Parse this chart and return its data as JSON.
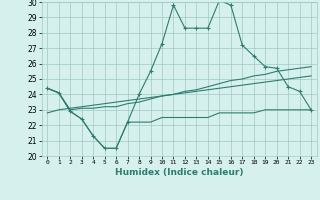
{
  "xlabel": "Humidex (Indice chaleur)",
  "x": [
    0,
    1,
    2,
    3,
    4,
    5,
    6,
    7,
    8,
    9,
    10,
    11,
    12,
    13,
    14,
    15,
    16,
    17,
    18,
    19,
    20,
    21,
    22,
    23
  ],
  "line_max": [
    24.4,
    24.1,
    22.9,
    22.4,
    21.3,
    20.5,
    20.5,
    22.2,
    24.0,
    25.5,
    27.3,
    29.8,
    28.3,
    28.3,
    28.3,
    30.1,
    29.8,
    27.2,
    26.5,
    25.8,
    25.7,
    24.5,
    24.2,
    23.0
  ],
  "line_min": [
    24.4,
    24.1,
    22.9,
    22.4,
    21.3,
    20.5,
    20.5,
    22.2,
    22.2,
    22.2,
    22.5,
    22.5,
    22.5,
    22.5,
    22.5,
    22.8,
    22.8,
    22.8,
    22.8,
    23.0,
    23.0,
    23.0,
    23.0,
    23.0
  ],
  "line_mean": [
    24.4,
    24.1,
    23.0,
    23.1,
    23.1,
    23.2,
    23.2,
    23.4,
    23.5,
    23.7,
    23.9,
    24.0,
    24.2,
    24.3,
    24.5,
    24.7,
    24.9,
    25.0,
    25.2,
    25.3,
    25.5,
    25.6,
    25.7,
    25.8
  ],
  "line_reg": [
    22.8,
    23.0,
    23.1,
    23.2,
    23.3,
    23.4,
    23.5,
    23.6,
    23.7,
    23.8,
    23.9,
    24.0,
    24.1,
    24.2,
    24.3,
    24.4,
    24.5,
    24.6,
    24.7,
    24.8,
    24.9,
    25.0,
    25.1,
    25.2
  ],
  "line_color": "#2e7d6e",
  "bg_color": "#d6f0ee",
  "grid_color": "#a0c8c4",
  "ylim": [
    20,
    30
  ],
  "yticks": [
    20,
    21,
    22,
    23,
    24,
    25,
    26,
    27,
    28,
    29,
    30
  ],
  "marker": "+",
  "marker_size": 3,
  "linewidth": 0.8
}
